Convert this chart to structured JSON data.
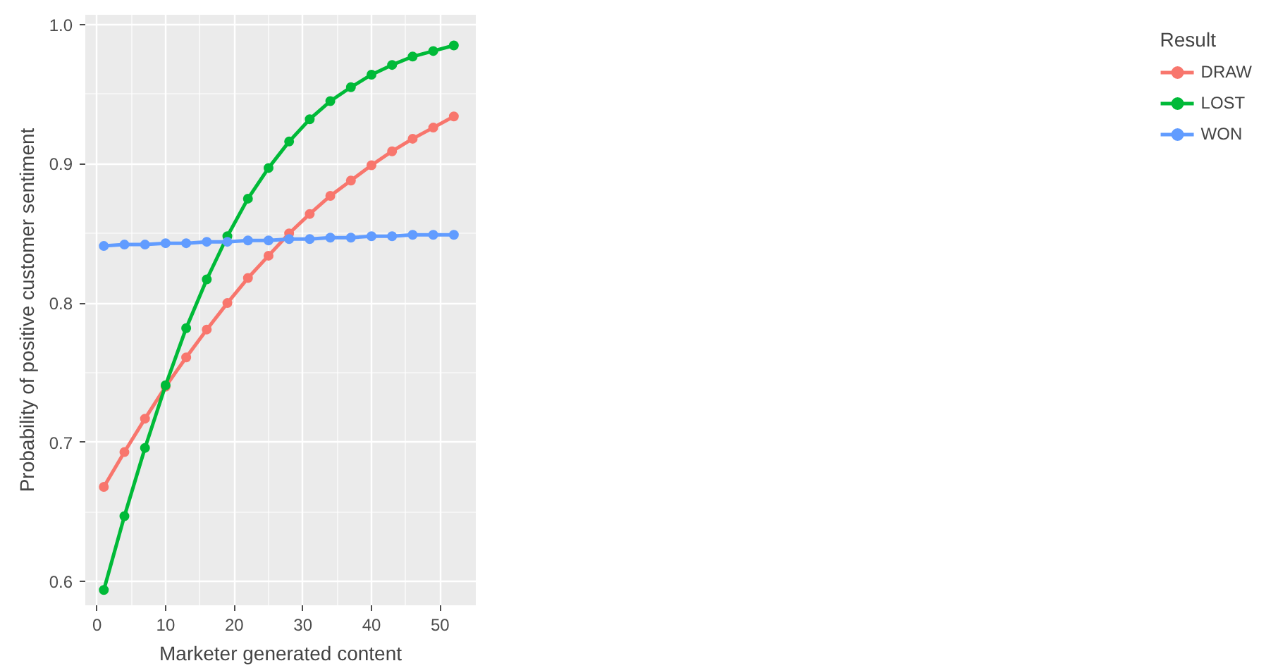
{
  "chart_data": {
    "type": "line",
    "xlabel": "Marketer generated content",
    "ylabel": "Probability of positive customer sentiment",
    "legend_title": "Result",
    "x": [
      1,
      4,
      7,
      10,
      13,
      16,
      19,
      22,
      25,
      28,
      31,
      34,
      37,
      40,
      43,
      46,
      49,
      52
    ],
    "series": [
      {
        "name": "DRAW",
        "color": "#f8766d",
        "values": [
          0.668,
          0.693,
          0.717,
          0.74,
          0.761,
          0.781,
          0.8,
          0.818,
          0.834,
          0.85,
          0.864,
          0.877,
          0.888,
          0.899,
          0.909,
          0.918,
          0.926,
          0.934
        ]
      },
      {
        "name": "LOST",
        "color": "#00ba38",
        "values": [
          0.594,
          0.647,
          0.696,
          0.741,
          0.782,
          0.817,
          0.848,
          0.875,
          0.897,
          0.916,
          0.932,
          0.945,
          0.955,
          0.964,
          0.971,
          0.977,
          0.981,
          0.985
        ]
      },
      {
        "name": "WON",
        "color": "#619cff",
        "values": [
          0.841,
          0.842,
          0.842,
          0.843,
          0.843,
          0.844,
          0.844,
          0.845,
          0.845,
          0.846,
          0.846,
          0.847,
          0.847,
          0.848,
          0.848,
          0.849,
          0.849,
          0.849
        ]
      }
    ],
    "xlim": [
      -1.7,
      55.2
    ],
    "ylim": [
      0.583,
      1.007
    ],
    "xticks": [
      0,
      10,
      20,
      30,
      40,
      50
    ],
    "yticks": [
      {
        "value": 0.6,
        "label": "0.6"
      },
      {
        "value": 0.7,
        "label": "0.7"
      },
      {
        "value": 0.8,
        "label": "0.8"
      },
      {
        "value": 0.9,
        "label": "0.9"
      },
      {
        "value": 1.0,
        "label": "1.0"
      }
    ],
    "grid": true,
    "legend": "right",
    "marker": "circle",
    "line_style": "solid"
  }
}
